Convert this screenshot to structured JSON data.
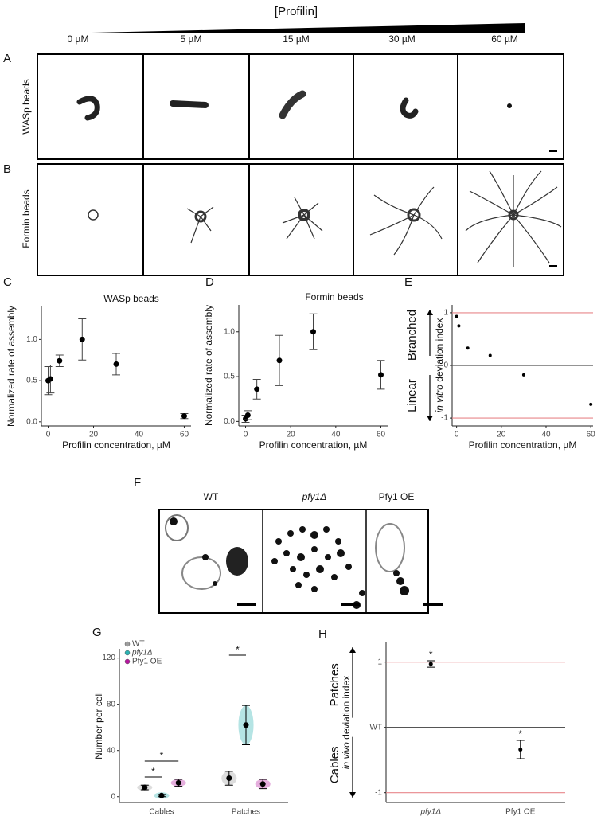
{
  "header": {
    "title": "[Profilin]",
    "concentrations": [
      "0 µM",
      "5 µM",
      "15 µM",
      "30 µM",
      "60 µM"
    ]
  },
  "panel_labels": [
    "A",
    "B",
    "C",
    "D",
    "E",
    "F",
    "G",
    "H"
  ],
  "rows": [
    "WASp beads",
    "Formin beads"
  ],
  "cell_panel": {
    "labels": [
      "WT",
      "pfy1Δ",
      "Pfy1 OE"
    ]
  },
  "chart_data": [
    {
      "type": "scatter",
      "title": "WASp beads",
      "y_label": "Normalized rate of assembly",
      "x_label": "Profilin concentration, µM",
      "x": [
        0,
        1,
        5,
        15,
        30,
        60
      ],
      "values": [
        0.5,
        0.52,
        0.74,
        1.0,
        0.7,
        0.07
      ],
      "errors": [
        0.17,
        0.17,
        0.07,
        0.25,
        0.13,
        0.03
      ],
      "xlim": [
        -3,
        63
      ],
      "ylim": [
        -0.05,
        1.4
      ],
      "xticks": [
        0,
        20,
        40,
        60
      ],
      "yticks": [
        {
          "value": 0,
          "label": "0.0"
        },
        {
          "value": 0.5,
          "label": "0.5"
        },
        {
          "value": 1,
          "label": "1.0"
        }
      ],
      "color": "#000000"
    },
    {
      "type": "scatter",
      "title": "Formin beads",
      "y_label": "Normalized rate of assembly",
      "x_label": "Profilin concentration, µM",
      "x": [
        0,
        1,
        5,
        15,
        30,
        60
      ],
      "values": [
        0.03,
        0.07,
        0.36,
        0.68,
        1.0,
        0.52
      ],
      "errors": [
        0.04,
        0.05,
        0.11,
        0.28,
        0.2,
        0.16
      ],
      "xlim": [
        -3,
        63
      ],
      "ylim": [
        -0.05,
        1.3
      ],
      "xticks": [
        0,
        20,
        40,
        60
      ],
      "yticks": [
        {
          "value": 0,
          "label": "0.0"
        },
        {
          "value": 0.5,
          "label": "0.5"
        },
        {
          "value": 1,
          "label": "1.0"
        }
      ],
      "color": "#000000"
    },
    {
      "type": "scatter",
      "y_label_italic": "in vitro",
      "y_label": " deviation index",
      "x_label": "Profilin concentration, µM",
      "upper_label": "Branched",
      "lower_label": "Linear",
      "x": [
        0,
        1,
        5,
        15,
        30,
        60
      ],
      "values": [
        0.93,
        0.75,
        0.33,
        0.19,
        -0.18,
        -0.74
      ],
      "xlim": [
        -2,
        61
      ],
      "ylim": [
        -1.15,
        1.15
      ],
      "xticks": [
        0,
        20,
        40,
        60
      ],
      "yticks": [
        -1,
        0,
        1
      ],
      "hlines": [
        1,
        0,
        -1
      ],
      "hline_colors": [
        "#e8878b",
        "#555555",
        "#e8878b"
      ],
      "color": "#000000"
    },
    {
      "type": "dot",
      "y_label": "Number per cell",
      "categories": [
        "Cables",
        "Patches"
      ],
      "series": [
        {
          "name": "WT",
          "color": "#9e9e9e",
          "values": [
            8,
            16
          ],
          "errors": [
            2,
            6
          ]
        },
        {
          "name": "pfy1Δ",
          "color": "#2ab3b3",
          "values": [
            1,
            62
          ],
          "errors": [
            1,
            17
          ]
        },
        {
          "name": "Pfy1 OE",
          "color": "#b5179e",
          "values": [
            12,
            11
          ],
          "errors": [
            3,
            4
          ]
        }
      ],
      "ylim": [
        -5,
        128
      ],
      "yticks": [
        0,
        40,
        80,
        120
      ],
      "annotations": [
        "*",
        "*",
        "*"
      ]
    },
    {
      "type": "dot",
      "y_label_italic": "in vivo",
      "y_label": " deviation index",
      "upper_label": "Patches",
      "lower_label": "Cables",
      "categories": [
        "pfy1Δ",
        "Pfy1 OE"
      ],
      "values": [
        0.97,
        -0.34
      ],
      "errors": [
        0.05,
        0.14
      ],
      "ylim": [
        -1.15,
        1.3
      ],
      "yticks": [
        -1,
        {
          "value": 0,
          "label": "WT"
        },
        1
      ],
      "hlines": [
        1,
        0,
        -1
      ],
      "hline_colors": [
        "#e8878b",
        "#555555",
        "#e8878b"
      ],
      "annotations": [
        "*",
        "*"
      ],
      "color": "#000000"
    }
  ]
}
